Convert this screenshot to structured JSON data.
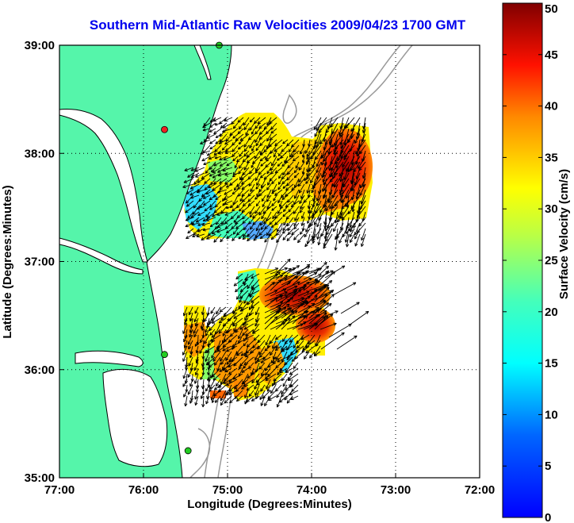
{
  "title": "Southern Mid-Atlantic Raw Velocities 2009/04/23 1700 GMT",
  "axes": {
    "xlabel": "Longitude (Degrees:Minutes)",
    "ylabel": "Latitude (Degrees:Minutes)",
    "x_ticks": [
      {
        "value": -77,
        "label": "77:00"
      },
      {
        "value": -76,
        "label": "76:00"
      },
      {
        "value": -75,
        "label": "75:00"
      },
      {
        "value": -74,
        "label": "74:00"
      },
      {
        "value": -73,
        "label": "73:00"
      },
      {
        "value": -72,
        "label": "72:00"
      }
    ],
    "y_ticks": [
      {
        "value": 35,
        "label": "35:00"
      },
      {
        "value": 36,
        "label": "36:00"
      },
      {
        "value": 37,
        "label": "37:00"
      },
      {
        "value": 38,
        "label": "38:00"
      },
      {
        "value": 39,
        "label": "39:00"
      }
    ],
    "xlim": [
      -77,
      -72
    ],
    "ylim": [
      35,
      39
    ],
    "grid": "dotted"
  },
  "colorbar": {
    "label": "Surface Velocity (cm/s)",
    "range": [
      0,
      50
    ],
    "ticks": [
      "0",
      "5",
      "10",
      "15",
      "20",
      "25",
      "30",
      "35",
      "40",
      "45",
      "50"
    ],
    "colormap": "jet"
  },
  "colors": {
    "land": "#55f5aa",
    "coast": "#000000",
    "bathymetry": "#999999",
    "title": "#0000ee",
    "station": "#22cc22",
    "station_highlight": "#ee2222"
  },
  "stations": [
    {
      "lon": -75.1,
      "lat": 39.0,
      "color": "green"
    },
    {
      "lon": -75.75,
      "lat": 38.22,
      "color": "red"
    },
    {
      "lon": -75.75,
      "lat": 36.14,
      "color": "green"
    },
    {
      "lon": -75.47,
      "lat": 35.25,
      "color": "green"
    }
  ],
  "chart_data": {
    "type": "heatmap",
    "units": "cm/s",
    "fields": [
      {
        "region": "north",
        "cells": [
          {
            "lon": -75.35,
            "lat": 37.55,
            "speed": 8
          },
          {
            "lon": -75.1,
            "lat": 37.55,
            "speed": 12
          },
          {
            "lon": -75.2,
            "lat": 37.75,
            "speed": 22
          },
          {
            "lon": -74.9,
            "lat": 37.95,
            "speed": 25
          },
          {
            "lon": -74.6,
            "lat": 37.75,
            "speed": 22
          },
          {
            "lon": -74.4,
            "lat": 37.45,
            "speed": 12
          },
          {
            "lon": -74.2,
            "lat": 37.6,
            "speed": 20
          },
          {
            "lon": -74.0,
            "lat": 37.8,
            "speed": 30
          },
          {
            "lon": -73.8,
            "lat": 37.7,
            "speed": 45
          },
          {
            "lon": -73.6,
            "lat": 37.85,
            "speed": 48
          },
          {
            "lon": -73.45,
            "lat": 37.6,
            "speed": 35
          }
        ]
      },
      {
        "region": "south",
        "cells": [
          {
            "lon": -75.35,
            "lat": 36.2,
            "speed": 25
          },
          {
            "lon": -75.1,
            "lat": 36.0,
            "speed": 30
          },
          {
            "lon": -74.9,
            "lat": 36.35,
            "speed": 20
          },
          {
            "lon": -74.7,
            "lat": 36.1,
            "speed": 35
          },
          {
            "lon": -74.6,
            "lat": 36.6,
            "speed": 28
          },
          {
            "lon": -74.3,
            "lat": 36.6,
            "speed": 45
          },
          {
            "lon": -74.1,
            "lat": 36.75,
            "speed": 48
          },
          {
            "lon": -73.85,
            "lat": 36.5,
            "speed": 38
          },
          {
            "lon": -73.95,
            "lat": 36.3,
            "speed": 42
          }
        ]
      }
    ]
  }
}
